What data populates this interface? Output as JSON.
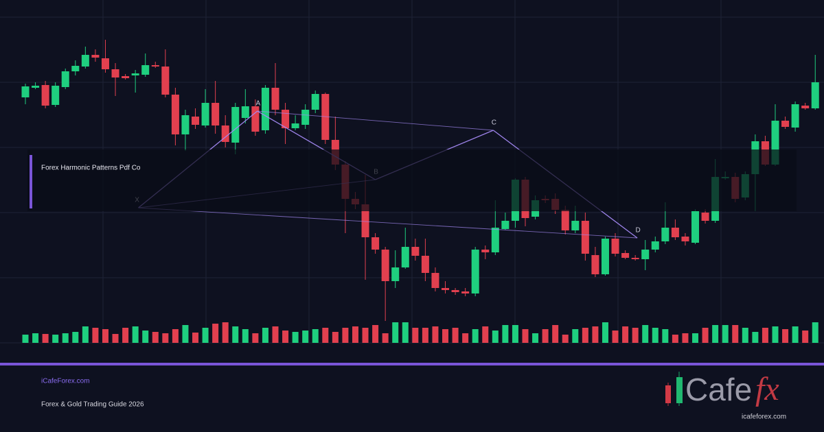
{
  "chart_data": {
    "type": "candlestick",
    "title": "Forex Harmonic Patterns Pdf Co",
    "up_color": "#1fcf7f",
    "down_color": "#e2404f",
    "ylim": [
      0,
      500
    ],
    "volume_ylim": [
      0,
      40
    ],
    "open": [
      358,
      372,
      376,
      347,
      373,
      396,
      403,
      420,
      415,
      399,
      389,
      390,
      391,
      405,
      403,
      362,
      304,
      330,
      317,
      350,
      317,
      292,
      328,
      345,
      310,
      372,
      340,
      313,
      318,
      340,
      363,
      296,
      260,
      210,
      202,
      154,
      136,
      90,
      110,
      140,
      127,
      102,
      80,
      77,
      75,
      72,
      136,
      132,
      166,
      178,
      238,
      184,
      210,
      210,
      194,
      164,
      178,
      128,
      100,
      152,
      131,
      124,
      122,
      136,
      148,
      168,
      155,
      146,
      190,
      178,
      240,
      242,
      212,
      246,
      294,
      260,
      324,
      314,
      346,
      342
    ],
    "high": [
      378,
      380,
      382,
      380,
      400,
      412,
      432,
      428,
      442,
      408,
      392,
      398,
      422,
      410,
      428,
      372,
      340,
      342,
      370,
      382,
      332,
      350,
      370,
      355,
      376,
      408,
      350,
      332,
      348,
      368,
      365,
      330,
      265,
      220,
      245,
      160,
      140,
      135,
      168,
      152,
      152,
      110,
      90,
      80,
      80,
      140,
      142,
      208,
      190,
      240,
      242,
      215,
      215,
      218,
      200,
      200,
      190,
      140,
      155,
      160,
      135,
      128,
      150,
      155,
      205,
      180,
      160,
      195,
      195,
      268,
      250,
      248,
      250,
      304,
      302,
      348,
      330,
      352,
      350,
      420
    ],
    "low": [
      348,
      370,
      342,
      344,
      370,
      390,
      400,
      410,
      394,
      360,
      384,
      365,
      388,
      401,
      358,
      288,
      280,
      312,
      314,
      305,
      285,
      275,
      320,
      302,
      305,
      332,
      290,
      310,
      312,
      335,
      290,
      252,
      160,
      195,
      92,
      130,
      32,
      80,
      108,
      120,
      90,
      75,
      72,
      70,
      68,
      68,
      122,
      128,
      165,
      168,
      170,
      180,
      204,
      188,
      158,
      160,
      120,
      96,
      98,
      126,
      122,
      120,
      106,
      132,
      144,
      150,
      142,
      144,
      174,
      175,
      238,
      205,
      208,
      192,
      258,
      258,
      312,
      308,
      340,
      340
    ],
    "close": [
      374,
      375,
      346,
      375,
      396,
      404,
      420,
      416,
      399,
      387,
      386,
      393,
      405,
      403,
      362,
      304,
      332,
      318,
      350,
      317,
      293,
      344,
      345,
      308,
      372,
      340,
      313,
      320,
      340,
      363,
      296,
      260,
      210,
      202,
      154,
      136,
      90,
      110,
      140,
      127,
      102,
      80,
      77,
      74,
      72,
      136,
      132,
      168,
      178,
      238,
      182,
      208,
      208,
      194,
      164,
      178,
      130,
      100,
      152,
      130,
      124,
      122,
      136,
      148,
      168,
      154,
      148,
      192,
      178,
      242,
      242,
      210,
      246,
      294,
      260,
      324,
      315,
      348,
      342,
      380
    ],
    "volume": [
      12,
      14,
      13,
      12,
      14,
      16,
      24,
      22,
      20,
      13,
      22,
      24,
      18,
      16,
      14,
      20,
      26,
      15,
      22,
      28,
      30,
      24,
      20,
      14,
      22,
      24,
      18,
      16,
      18,
      20,
      22,
      16,
      22,
      24,
      22,
      26,
      14,
      30,
      30,
      22,
      22,
      24,
      20,
      22,
      14,
      20,
      24,
      18,
      26,
      26,
      20,
      14,
      20,
      26,
      12,
      20,
      22,
      24,
      30,
      18,
      24,
      22,
      26,
      22,
      20,
      12,
      14,
      14,
      22,
      26,
      26,
      26,
      22,
      16,
      22,
      24,
      20,
      24,
      18,
      30
    ],
    "pattern_points": [
      {
        "label": "X",
        "x": 11.3,
        "price": 197
      },
      {
        "label": "A",
        "x": 23.2,
        "price": 338
      },
      {
        "label": "B",
        "x": 35,
        "price": 238
      },
      {
        "label": "C",
        "x": 46.8,
        "price": 310
      },
      {
        "label": "D",
        "x": 61.2,
        "price": 153
      }
    ]
  },
  "footer": {
    "site": "iCafeForex.com",
    "tagline": "Forex & Gold Trading Guide 2026",
    "logo_main": "Cafe",
    "logo_fx": "fx",
    "logo_url": "icafeforex.com"
  }
}
